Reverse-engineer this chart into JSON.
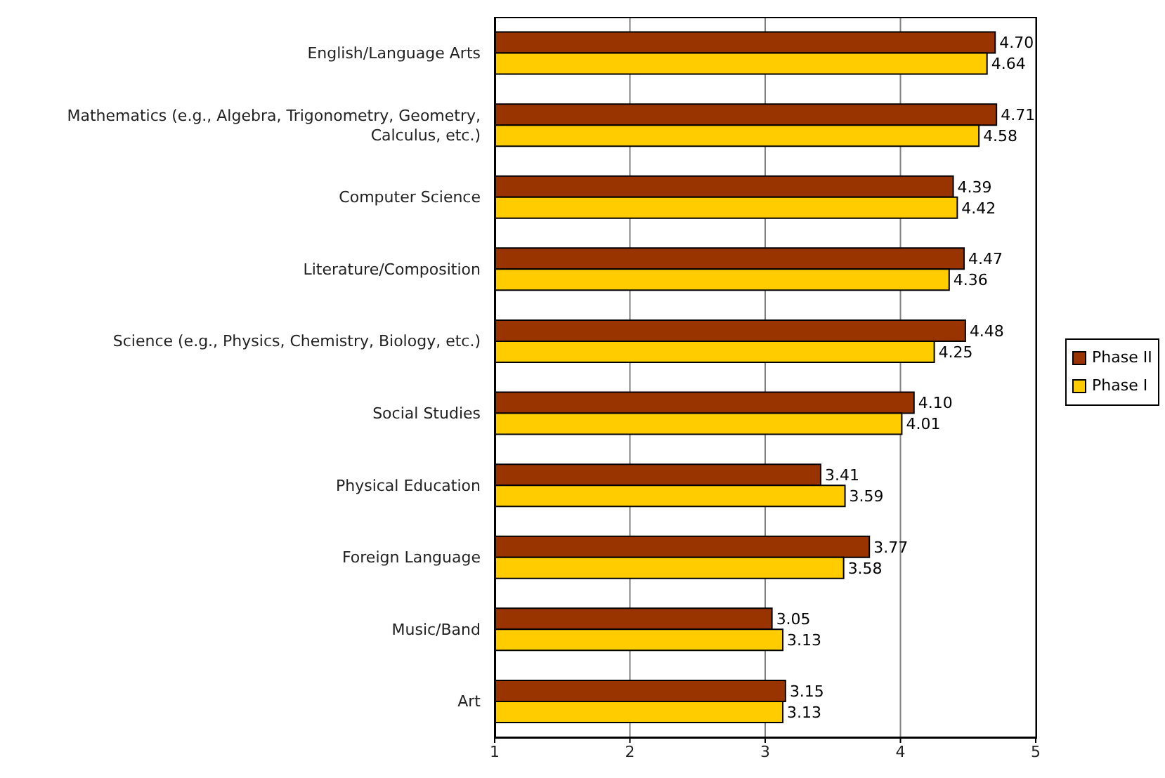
{
  "chart_data": {
    "type": "bar",
    "orientation": "horizontal",
    "categories": [
      "English/Language Arts",
      "Mathematics (e.g., Algebra, Trigonometry, Geometry, Calculus, etc.)",
      "Computer Science",
      "Literature/Composition",
      "Science (e.g., Physics, Chemistry, Biology, etc.)",
      "Social Studies",
      "Physical Education",
      "Foreign Language",
      "Music/Band",
      "Art"
    ],
    "series": [
      {
        "name": "Phase II",
        "color": "#993300",
        "values": [
          4.7,
          4.71,
          4.39,
          4.47,
          4.48,
          4.1,
          3.41,
          3.77,
          3.05,
          3.15
        ],
        "value_labels": [
          "4.70",
          "4.71",
          "4.39",
          "4.47",
          "4.48",
          "4.10",
          "3.41",
          "3.77",
          "3.05",
          "3.15"
        ]
      },
      {
        "name": "Phase I",
        "color": "#ffcc00",
        "values": [
          4.64,
          4.58,
          4.42,
          4.36,
          4.25,
          4.01,
          3.59,
          3.58,
          3.13,
          3.13
        ],
        "value_labels": [
          "4.64",
          "4.58",
          "4.42",
          "4.36",
          "4.25",
          "4.01",
          "3.59",
          "3.58",
          "3.13",
          "3.13"
        ]
      }
    ],
    "xlim": [
      1,
      5
    ],
    "xticks": [
      1,
      2,
      3,
      4,
      5
    ],
    "grid": "x",
    "legend": "right"
  }
}
